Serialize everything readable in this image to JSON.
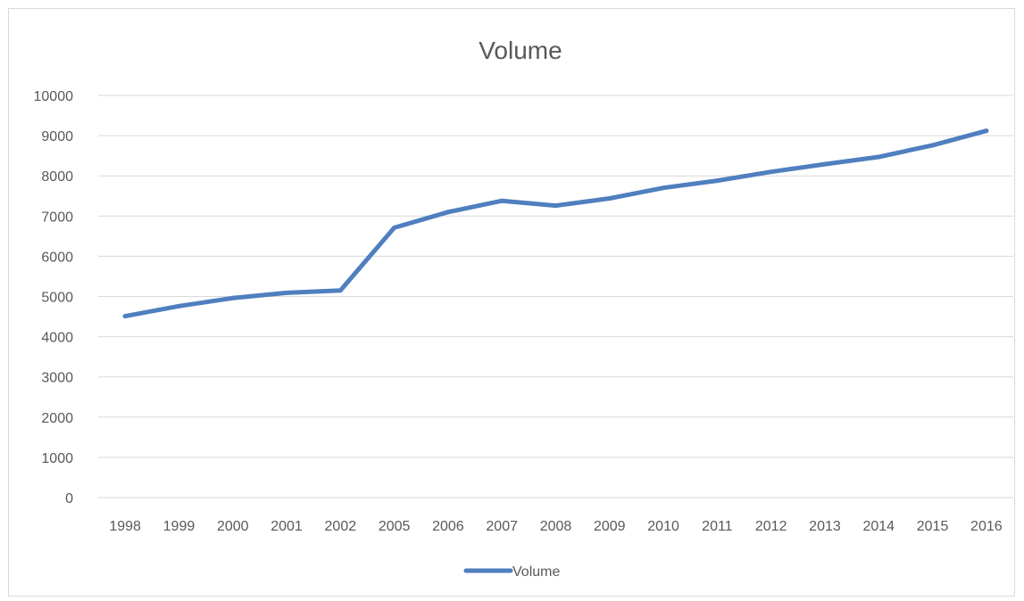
{
  "chart_data": {
    "type": "line",
    "title": "Volume",
    "xlabel": "",
    "ylabel": "",
    "categories": [
      "1998",
      "1999",
      "2000",
      "2001",
      "2002",
      "2005",
      "2006",
      "2007",
      "2008",
      "2009",
      "2010",
      "2011",
      "2012",
      "2013",
      "2014",
      "2015",
      "2016"
    ],
    "series": [
      {
        "name": "Volume",
        "values": [
          4510,
          4760,
          4960,
          5090,
          5150,
          6710,
          7100,
          7380,
          7260,
          7440,
          7700,
          7880,
          8100,
          8290,
          8470,
          8760,
          9120
        ]
      }
    ],
    "ylim": [
      0,
      10000
    ],
    "yticks": [
      "0",
      "1000",
      "2000",
      "3000",
      "4000",
      "5000",
      "6000",
      "7000",
      "8000",
      "9000",
      "10000"
    ],
    "grid": "horizontal",
    "legend_position": "bottom",
    "series_color": "#4f7fbf",
    "grid_color": "#d9d9d9",
    "text_color": "#595959"
  }
}
